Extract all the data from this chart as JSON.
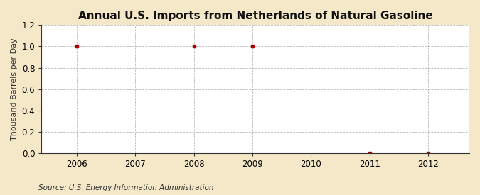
{
  "title": "Annual U.S. Imports from Netherlands of Natural Gasoline",
  "ylabel": "Thousand Barrels per Day",
  "source": "Source: U.S. Energy Information Administration",
  "data_x": [
    2006,
    2008,
    2009,
    2011,
    2012
  ],
  "data_y": [
    1.0,
    1.0,
    1.0,
    0.0,
    0.0
  ],
  "ylim": [
    0.0,
    1.2
  ],
  "xlim": [
    2005.4,
    2012.7
  ],
  "yticks": [
    0.0,
    0.2,
    0.4,
    0.6,
    0.8,
    1.0,
    1.2
  ],
  "xticks": [
    2006,
    2007,
    2008,
    2009,
    2010,
    2011,
    2012
  ],
  "marker_color": "#aa0000",
  "marker": "s",
  "marker_size": 3.5,
  "grid_color": "#aaaaaa",
  "background_color": "#f5e8c8",
  "plot_bg_color": "#ffffff",
  "title_fontsize": 11,
  "label_fontsize": 8,
  "tick_fontsize": 8.5,
  "source_fontsize": 7.5
}
